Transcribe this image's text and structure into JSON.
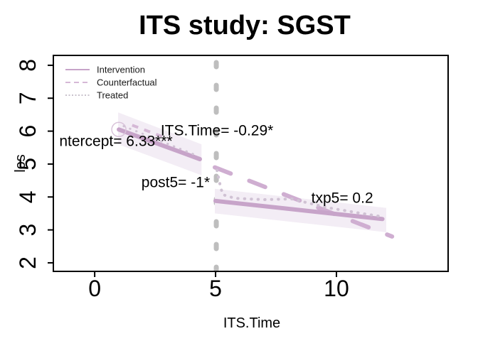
{
  "figure_title": "ITS study: SGST",
  "chart_data": {
    "type": "line",
    "title": "ITS study: SGST",
    "xlabel": "ITS.Time",
    "ylabel": "los",
    "xlim": [
      -1.71,
      14.62
    ],
    "ylim": [
      1.74,
      8.3
    ],
    "x_ticks": [
      "0",
      "5",
      "10"
    ],
    "x_tick_values": [
      0,
      5,
      10
    ],
    "y_ticks": [
      "2",
      "3",
      "4",
      "5",
      "6",
      "7",
      "8"
    ],
    "y_tick_values": [
      2,
      3,
      4,
      5,
      6,
      7,
      8
    ],
    "grid": false,
    "legend_position": "top-left",
    "legend": [
      {
        "label": "Intervention",
        "style": "solid",
        "color": "#c7a4c9"
      },
      {
        "label": "Counterfactual",
        "style": "dashed",
        "color": "#d5b8d6"
      },
      {
        "label": "Treated",
        "style": "dotted",
        "color": "#c9c2cc"
      }
    ],
    "intervention_vline": {
      "x": 5.03,
      "color": "#bebebe",
      "width": 7,
      "dash": [
        6,
        26
      ]
    },
    "series": [
      {
        "name": "intervention-pre",
        "legend": "Intervention",
        "style": "solid",
        "color": "#c7a4c9",
        "width": 6,
        "points": [
          [
            1,
            6.05
          ],
          [
            4.35,
            5.15
          ]
        ],
        "band": {
          "color": "#f3edf5",
          "upper": [
            [
              0.97,
              6.57
            ],
            [
              4.42,
              5.6
            ]
          ],
          "lower": [
            [
              0.97,
              5.6
            ],
            [
              4.42,
              4.66
            ]
          ]
        },
        "marker": {
          "x": 1,
          "y": 6.05,
          "shape": "open-circle",
          "color": "#d9c4da",
          "radius": 10
        }
      },
      {
        "name": "counterfactual-pre",
        "legend": "Counterfactual",
        "style": "dashed",
        "color": "#d5b8d6",
        "width": 4,
        "dash": [
          9,
          9
        ],
        "linecap": "butt",
        "points": [
          [
            1.55,
            6.18
          ],
          [
            3.1,
            5.75
          ]
        ]
      },
      {
        "name": "treated-pre",
        "legend": "Treated",
        "style": "dotted",
        "color": "#d0c2d4",
        "width": 3,
        "dash": [
          0.5,
          9
        ],
        "linecap": "round",
        "points": [
          [
            1.2,
            6.15
          ],
          [
            4.25,
            5.25
          ]
        ]
      },
      {
        "name": "counterfactual-post",
        "legend": "Counterfactual",
        "style": "dashed",
        "color": "#cfaed1",
        "width": 6,
        "dash": [
          24,
          28
        ],
        "linecap": "round",
        "points": [
          [
            4.97,
            4.9
          ],
          [
            12.3,
            2.8
          ]
        ]
      },
      {
        "name": "intervention-post",
        "legend": "Intervention",
        "style": "solid",
        "color": "#c7a4c9",
        "width": 6,
        "points": [
          [
            5,
            3.88
          ],
          [
            11.9,
            3.33
          ]
        ],
        "band": {
          "color": "#f3edf5",
          "upper": [
            [
              4.97,
              4.25
            ],
            [
              12.06,
              3.67
            ]
          ],
          "lower": [
            [
              4.97,
              3.5
            ],
            [
              12.06,
              2.93
            ]
          ]
        }
      },
      {
        "name": "treated-post",
        "legend": "Treated",
        "style": "dotted",
        "color": "#d0c2d4",
        "width": 4,
        "dash": [
          0.5,
          9
        ],
        "linecap": "round",
        "points": [
          [
            5.06,
            4.81
          ],
          [
            5.2,
            4.33
          ],
          [
            5.3,
            4.07
          ],
          [
            5.8,
            3.96
          ],
          [
            6.97,
            3.92
          ],
          [
            8.15,
            3.94
          ],
          [
            8.6,
            3.86
          ],
          [
            9.6,
            3.68
          ],
          [
            10.8,
            3.53
          ],
          [
            11.9,
            3.4
          ]
        ]
      }
    ],
    "annotations": [
      {
        "name": "its-time-coef",
        "text": "ITS.Time= -0.29*",
        "x": 5.06,
        "y": 6.01
      },
      {
        "name": "intercept-coef",
        "text": "ntercept= 6.33***",
        "x": 0.88,
        "y": 5.69
      },
      {
        "name": "post5-coef",
        "text": "post5= -1*",
        "x": 3.35,
        "y": 4.44
      },
      {
        "name": "txp5-coef",
        "text": "txp5= 0.2",
        "x": 10.24,
        "y": 3.96
      }
    ]
  },
  "colors": {
    "background": "#ffffff",
    "axis": "#000000",
    "intervention": "#c7a4c9",
    "counterfactual": "#cfaed1",
    "treated": "#d0c2d4",
    "confidence_band": "#f3edf5",
    "vline_gray": "#bebebe"
  }
}
